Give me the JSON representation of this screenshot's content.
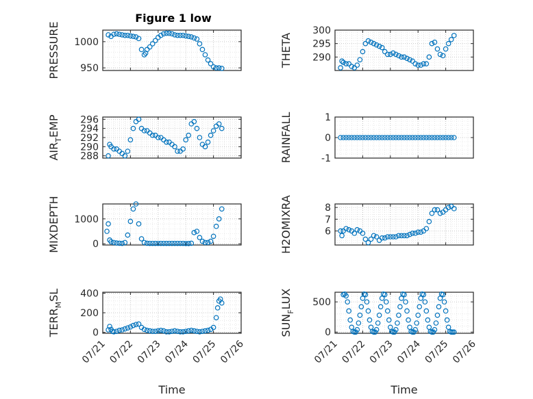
{
  "figure": {
    "title": "Figure 1 low",
    "marker_color": "#0072BD",
    "axis_color": "#262626",
    "grid": "dotted major+minor"
  },
  "chart_data": [
    {
      "id": "pressure",
      "type": "scatter",
      "title": "Figure 1 low",
      "ylabel": "PRESSURE",
      "ylabel_sub": null,
      "ylim": [
        945,
        1022
      ],
      "yticks": [
        950,
        1000
      ],
      "yticklabels": [
        "950",
        "1000"
      ],
      "xlim": [
        "07/21",
        "07/26"
      ],
      "xticklabels": [
        "07/21",
        "07/22",
        "07/23",
        "07/24",
        "07/25",
        "07/26"
      ],
      "xlabel": "",
      "x": [
        21.2,
        21.3,
        21.4,
        21.5,
        21.6,
        21.7,
        21.8,
        21.9,
        22.0,
        22.1,
        22.2,
        22.3,
        22.4,
        22.5,
        22.55,
        22.6,
        22.7,
        22.8,
        22.9,
        23.0,
        23.1,
        23.2,
        23.3,
        23.4,
        23.5,
        23.6,
        23.7,
        23.8,
        23.9,
        24.0,
        24.1,
        24.2,
        24.3,
        24.4,
        24.5,
        24.6,
        24.7,
        24.8,
        24.9,
        25.0,
        25.1,
        25.2,
        25.3
      ],
      "y": [
        1013,
        1010,
        1014,
        1015,
        1014,
        1013,
        1012,
        1012,
        1011,
        1010,
        1009,
        1006,
        985,
        975,
        978,
        985,
        990,
        996,
        1002,
        1008,
        1012,
        1015,
        1016,
        1016,
        1015,
        1013,
        1012,
        1012,
        1012,
        1011,
        1010,
        1009,
        1007,
        1005,
        996,
        985,
        975,
        965,
        958,
        952,
        950,
        950,
        949
      ]
    },
    {
      "id": "theta",
      "type": "scatter",
      "ylabel": "THETA",
      "ylabel_sub": null,
      "ylim": [
        285,
        300
      ],
      "yticks": [
        290,
        295,
        300
      ],
      "yticklabels": [
        "290",
        "295",
        "300"
      ],
      "xlim": [
        "07/21",
        "07/26"
      ],
      "xticklabels": [
        "07/21",
        "07/22",
        "07/23",
        "07/24",
        "07/25",
        "07/26"
      ],
      "xlabel": "",
      "x": [
        21.2,
        21.25,
        21.3,
        21.4,
        21.5,
        21.6,
        21.7,
        21.8,
        21.9,
        22.0,
        22.1,
        22.2,
        22.3,
        22.4,
        22.5,
        22.6,
        22.7,
        22.8,
        22.9,
        23.0,
        23.1,
        23.2,
        23.3,
        23.4,
        23.5,
        23.6,
        23.7,
        23.8,
        23.9,
        24.0,
        24.1,
        24.2,
        24.3,
        24.4,
        24.5,
        24.6,
        24.7,
        24.8,
        24.9,
        25.0,
        25.1,
        25.2,
        25.3
      ],
      "y": [
        286,
        288.5,
        288,
        287.5,
        287.5,
        286.5,
        286,
        287,
        289,
        292,
        295,
        296,
        295.5,
        295,
        294.5,
        294,
        293.5,
        292,
        291,
        291,
        291.5,
        291,
        290.5,
        290,
        290,
        289.5,
        289,
        288.5,
        287.5,
        287,
        287,
        287.5,
        287.5,
        290,
        295,
        295.5,
        293,
        291,
        290.5,
        293,
        295,
        296.5,
        298
      ]
    },
    {
      "id": "air_temp",
      "type": "scatter",
      "ylabel": "AIR",
      "ylabel_sub": "T",
      "ylabel_tail": "EMP",
      "ylim": [
        287.5,
        296.5
      ],
      "yticks": [
        288,
        290,
        292,
        294,
        296
      ],
      "yticklabels": [
        "288",
        "290",
        "292",
        "294",
        "296"
      ],
      "xlim": [
        "07/21",
        "07/26"
      ],
      "xticklabels": [
        "07/21",
        "07/22",
        "07/23",
        "07/24",
        "07/25",
        "07/26"
      ],
      "xlabel": "",
      "x": [
        21.2,
        21.25,
        21.3,
        21.4,
        21.5,
        21.6,
        21.7,
        21.8,
        21.9,
        22.0,
        22.1,
        22.2,
        22.3,
        22.4,
        22.5,
        22.6,
        22.7,
        22.8,
        22.9,
        23.0,
        23.1,
        23.2,
        23.3,
        23.4,
        23.5,
        23.6,
        23.7,
        23.8,
        23.9,
        24.0,
        24.1,
        24.2,
        24.3,
        24.4,
        24.5,
        24.6,
        24.7,
        24.8,
        24.9,
        25.0,
        25.1,
        25.2,
        25.3
      ],
      "y": [
        288,
        290.5,
        290,
        289.5,
        289.5,
        289,
        288.5,
        288,
        289,
        291.5,
        294,
        295.5,
        296,
        294,
        293.5,
        293.5,
        293,
        292.5,
        292.5,
        292,
        292,
        291.5,
        291,
        291,
        290.5,
        290,
        289,
        289,
        289.5,
        291.5,
        292.5,
        295,
        295.5,
        294,
        292,
        290.5,
        290,
        291,
        292.5,
        293.5,
        294.5,
        295,
        294
      ]
    },
    {
      "id": "rainfall",
      "type": "scatter",
      "ylabel": "RAINFALL",
      "ylabel_sub": null,
      "ylim": [
        -1,
        1
      ],
      "yticks": [
        -1,
        0,
        1
      ],
      "yticklabels": [
        "-1",
        "0",
        "1"
      ],
      "xlim": [
        "07/21",
        "07/26"
      ],
      "xticklabels": [
        "07/21",
        "07/22",
        "07/23",
        "07/24",
        "07/25",
        "07/26"
      ],
      "xlabel": "",
      "x": [
        21.2,
        21.3,
        21.4,
        21.5,
        21.6,
        21.7,
        21.8,
        21.9,
        22.0,
        22.1,
        22.2,
        22.3,
        22.4,
        22.5,
        22.6,
        22.7,
        22.8,
        22.9,
        23.0,
        23.1,
        23.2,
        23.3,
        23.4,
        23.5,
        23.6,
        23.7,
        23.8,
        23.9,
        24.0,
        24.1,
        24.2,
        24.3,
        24.4,
        24.5,
        24.6,
        24.7,
        24.8,
        24.9,
        25.0,
        25.1,
        25.2,
        25.3
      ],
      "y": [
        0,
        0,
        0,
        0,
        0,
        0,
        0,
        0,
        0,
        0,
        0,
        0,
        0,
        0,
        0,
        0,
        0,
        0,
        0,
        0,
        0,
        0,
        0,
        0,
        0,
        0,
        0,
        0,
        0,
        0,
        0,
        0,
        0,
        0,
        0,
        0,
        0,
        0,
        0,
        0,
        0,
        0
      ]
    },
    {
      "id": "mixdepth",
      "type": "scatter",
      "ylabel": "MIXDEPTH",
      "ylabel_sub": null,
      "ylim": [
        -50,
        1600
      ],
      "yticks": [
        0,
        1000
      ],
      "yticklabels": [
        "0",
        "1000"
      ],
      "xlim": [
        "07/21",
        "07/26"
      ],
      "xticklabels": [
        "07/21",
        "07/22",
        "07/23",
        "07/24",
        "07/25",
        "07/26"
      ],
      "xlabel": "",
      "x": [
        21.15,
        21.2,
        21.25,
        21.3,
        21.4,
        21.5,
        21.6,
        21.7,
        21.8,
        21.9,
        22.0,
        22.1,
        22.2,
        22.3,
        22.4,
        22.5,
        22.6,
        22.7,
        22.8,
        22.9,
        23.0,
        23.1,
        23.2,
        23.3,
        23.4,
        23.5,
        23.6,
        23.7,
        23.8,
        23.9,
        24.0,
        24.1,
        24.2,
        24.3,
        24.4,
        24.5,
        24.6,
        24.7,
        24.8,
        24.9,
        25.0,
        25.1,
        25.2,
        25.3
      ],
      "y": [
        500,
        800,
        150,
        80,
        50,
        30,
        20,
        15,
        50,
        350,
        900,
        1400,
        1600,
        800,
        200,
        50,
        20,
        15,
        15,
        15,
        15,
        15,
        15,
        15,
        15,
        15,
        15,
        15,
        15,
        15,
        10,
        10,
        20,
        450,
        500,
        250,
        100,
        50,
        50,
        100,
        300,
        700,
        1000,
        1400
      ]
    },
    {
      "id": "h2omixra",
      "type": "scatter",
      "ylabel": "H2OMIXRA",
      "ylabel_sub": null,
      "ylim": [
        4.8,
        8.3
      ],
      "yticks": [
        6,
        7,
        8
      ],
      "yticklabels": [
        "6",
        "7",
        "8"
      ],
      "xlim": [
        "07/21",
        "07/26"
      ],
      "xticklabels": [
        "07/21",
        "07/22",
        "07/23",
        "07/24",
        "07/25",
        "07/26"
      ],
      "xlabel": "",
      "x": [
        21.2,
        21.25,
        21.3,
        21.4,
        21.5,
        21.6,
        21.7,
        21.8,
        21.9,
        22.0,
        22.1,
        22.2,
        22.3,
        22.4,
        22.5,
        22.6,
        22.7,
        22.8,
        22.9,
        23.0,
        23.1,
        23.2,
        23.3,
        23.4,
        23.5,
        23.6,
        23.7,
        23.8,
        23.9,
        24.0,
        24.1,
        24.2,
        24.3,
        24.4,
        24.5,
        24.6,
        24.7,
        24.8,
        24.9,
        25.0,
        25.1,
        25.2,
        25.3
      ],
      "y": [
        6,
        5.6,
        6,
        6.2,
        6.1,
        6,
        5.8,
        6.1,
        6,
        5.8,
        5.3,
        5,
        5.3,
        5.6,
        5.5,
        5.2,
        5.4,
        5.4,
        5.5,
        5.5,
        5.5,
        5.5,
        5.6,
        5.6,
        5.6,
        5.6,
        5.7,
        5.8,
        5.8,
        5.9,
        5.9,
        6,
        6.2,
        6.8,
        7.5,
        7.8,
        7.8,
        7.5,
        7.6,
        7.8,
        8,
        8.1,
        7.9
      ]
    },
    {
      "id": "terr_msl",
      "type": "scatter",
      "ylabel": "TERR",
      "ylabel_sub": "M",
      "ylabel_tail": "SL",
      "ylim": [
        -10,
        410
      ],
      "yticks": [
        0,
        200,
        400
      ],
      "yticklabels": [
        "0",
        "200",
        "400"
      ],
      "xlim": [
        "07/21",
        "07/26"
      ],
      "xticklabels": [
        "07/21",
        "07/22",
        "07/23",
        "07/24",
        "07/25",
        "07/26"
      ],
      "xlabel": "Time",
      "x": [
        21.2,
        21.25,
        21.3,
        21.35,
        21.4,
        21.5,
        21.6,
        21.7,
        21.8,
        21.9,
        22.0,
        22.1,
        22.2,
        22.3,
        22.4,
        22.5,
        22.6,
        22.7,
        22.8,
        22.9,
        23.0,
        23.1,
        23.2,
        23.3,
        23.4,
        23.5,
        23.6,
        23.7,
        23.8,
        23.9,
        24.0,
        24.1,
        24.2,
        24.3,
        24.4,
        24.5,
        24.6,
        24.7,
        24.8,
        24.9,
        25.0,
        25.1,
        25.15,
        25.2,
        25.25,
        25.3
      ],
      "y": [
        25,
        60,
        30,
        10,
        5,
        10,
        20,
        25,
        35,
        45,
        55,
        70,
        80,
        85,
        50,
        30,
        20,
        15,
        10,
        10,
        15,
        20,
        15,
        5,
        5,
        10,
        15,
        10,
        5,
        5,
        10,
        15,
        20,
        15,
        10,
        5,
        10,
        15,
        20,
        30,
        50,
        150,
        250,
        320,
        340,
        300
      ]
    },
    {
      "id": "sun_flux",
      "type": "scatter",
      "ylabel": "SUN",
      "ylabel_sub": "F",
      "ylabel_tail": "LUX",
      "ylim": [
        -20,
        660
      ],
      "yticks": [
        0,
        500
      ],
      "yticklabels": [
        "0",
        "500"
      ],
      "xlim": [
        "07/21",
        "07/26"
      ],
      "xticklabels": [
        "07/21",
        "07/22",
        "07/23",
        "07/24",
        "07/25",
        "07/26"
      ],
      "xlabel": "Time",
      "x": [
        21.3,
        21.35,
        21.4,
        21.45,
        21.5,
        21.55,
        21.6,
        21.65,
        21.7,
        21.75,
        21.8,
        21.85,
        21.9,
        21.95,
        22.0,
        22.05,
        22.1,
        22.15,
        22.2,
        22.25,
        22.3,
        22.35,
        22.4,
        22.45,
        22.5,
        22.55,
        22.6,
        22.65,
        22.7,
        22.75,
        22.8,
        22.85,
        22.9,
        22.95,
        23.0,
        23.05,
        23.1,
        23.15,
        23.2,
        23.25,
        23.3,
        23.35,
        23.4,
        23.45,
        23.5,
        23.55,
        23.6,
        23.65,
        23.7,
        23.75,
        23.8,
        23.85,
        23.9,
        23.95,
        24.0,
        24.05,
        24.1,
        24.15,
        24.2,
        24.25,
        24.3,
        24.35,
        24.4,
        24.45,
        24.5,
        24.55,
        24.6,
        24.65,
        24.7,
        24.75,
        24.8,
        24.85,
        24.9,
        24.95,
        25.0,
        25.05,
        25.1,
        25.15,
        25.2,
        25.25,
        25.3
      ],
      "y": [
        620,
        630,
        600,
        500,
        350,
        200,
        80,
        10,
        0,
        0,
        40,
        150,
        280,
        420,
        560,
        630,
        620,
        500,
        350,
        200,
        80,
        10,
        0,
        0,
        40,
        150,
        280,
        420,
        560,
        630,
        620,
        500,
        350,
        200,
        80,
        10,
        0,
        0,
        40,
        150,
        280,
        420,
        560,
        630,
        620,
        500,
        350,
        200,
        80,
        10,
        0,
        0,
        40,
        150,
        280,
        420,
        560,
        630,
        620,
        500,
        350,
        200,
        80,
        10,
        0,
        0,
        40,
        150,
        280,
        420,
        560,
        630,
        620,
        500,
        350,
        200,
        80,
        10,
        0,
        0,
        0
      ]
    }
  ]
}
